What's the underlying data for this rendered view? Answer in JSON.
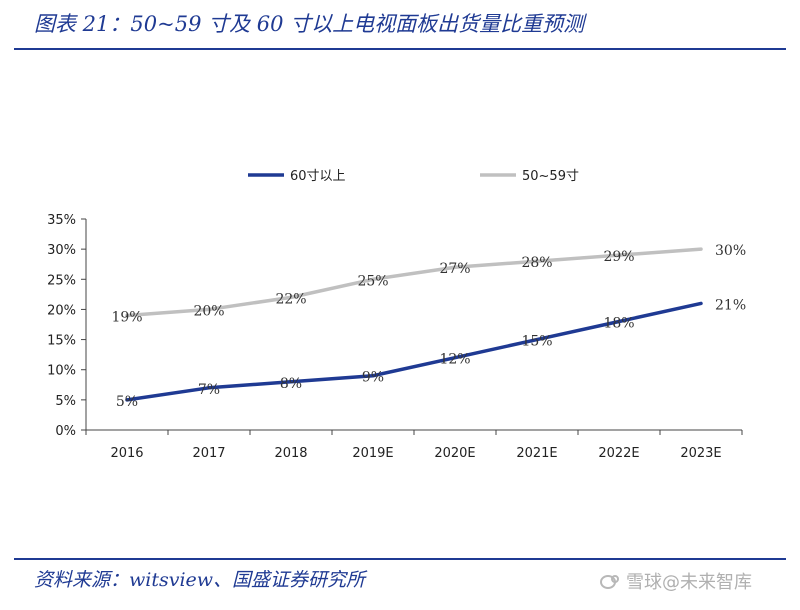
{
  "header": {
    "title": "图表 21：50~59 寸及 60 寸以上电视面板出货量比重预测"
  },
  "footer": {
    "source": "资料来源：witsview、国盛证券研究所",
    "watermark": "雪球@未来智库"
  },
  "chart_data": {
    "type": "line",
    "x": [
      "2016",
      "2017",
      "2018",
      "2019E",
      "2020E",
      "2021E",
      "2022E",
      "2023E"
    ],
    "y_ticks": [
      "0%",
      "5%",
      "10%",
      "15%",
      "20%",
      "25%",
      "30%",
      "35%"
    ],
    "ylim": [
      0,
      35
    ],
    "grid": false,
    "legend_position": "top-center",
    "series": [
      {
        "name": "60寸以上",
        "color": "#1f3a93",
        "values": [
          5,
          7,
          8,
          9,
          12,
          15,
          18,
          21
        ],
        "labels": [
          "5%",
          "7%",
          "8%",
          "9%",
          "12%",
          "15%",
          "18%",
          "21%"
        ]
      },
      {
        "name": "50~59寸",
        "color": "#c0c0c0",
        "values": [
          19,
          20,
          22,
          25,
          27,
          28,
          29,
          30
        ],
        "labels": [
          "19%",
          "20%",
          "22%",
          "25%",
          "27%",
          "28%",
          "29%",
          "30%"
        ]
      }
    ]
  }
}
